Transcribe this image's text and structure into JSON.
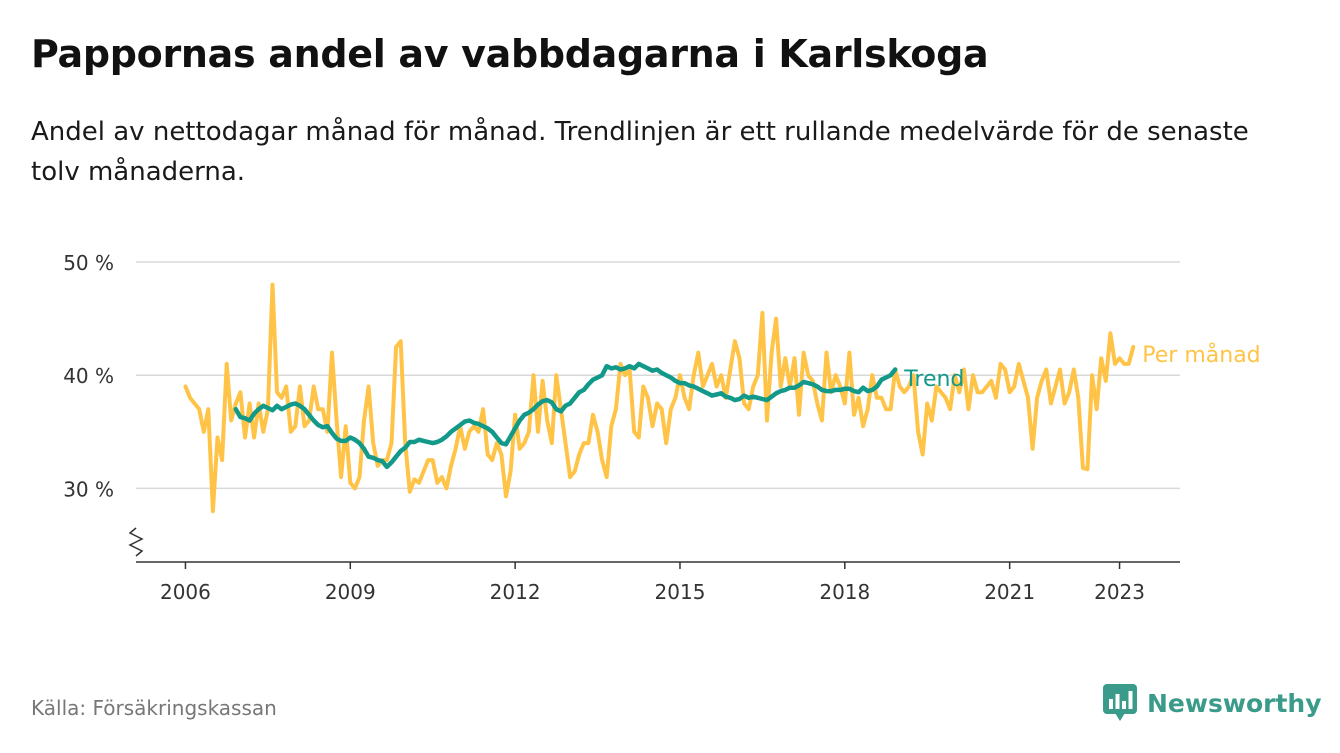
{
  "header": {
    "title": "Pappornas andel av vabbdagarna i Karlskoga",
    "subtitle": "Andel av nettodagar månad för månad. Trendlinjen är ett rullande medelvärde för de senaste tolv månaderna."
  },
  "footer": {
    "source": "Källa: Försäkringskassan",
    "brand": "Newsworthy",
    "brand_icon": "bar-chart-bubble-icon"
  },
  "colors": {
    "monthly": "#FFC447",
    "trend": "#12998A",
    "grid": "#d9d9d9",
    "axis": "#333333",
    "brand": "#3a9b8a"
  },
  "chart_data": {
    "type": "line",
    "title": "Pappornas andel av vabbdagarna i Karlskoga",
    "xlabel": "",
    "ylabel": "",
    "x_ticks": [
      {
        "label": "2006",
        "value": 2006
      },
      {
        "label": "2009",
        "value": 2009
      },
      {
        "label": "2012",
        "value": 2012
      },
      {
        "label": "2015",
        "value": 2015
      },
      {
        "label": "2018",
        "value": 2018
      },
      {
        "label": "2021",
        "value": 2021
      },
      {
        "label": "2023",
        "value": 2023
      }
    ],
    "y_ticks": [
      {
        "label": "30 %",
        "value": 30
      },
      {
        "label": "40 %",
        "value": 40
      },
      {
        "label": "50 %",
        "value": 50
      }
    ],
    "xlim": [
      2005.1,
      2024.1
    ],
    "ylim": [
      23.5,
      50
    ],
    "y_axis_break": true,
    "grid": true,
    "legend_placement": "inline-right",
    "series": [
      {
        "name": "Per månad",
        "start": "2006-01",
        "values": [
          39,
          38,
          37.5,
          37,
          35,
          37,
          28,
          34.5,
          32.5,
          41,
          36,
          37.5,
          38.5,
          34.5,
          37.5,
          34.5,
          37.5,
          35,
          37,
          48,
          38.5,
          38,
          39,
          35,
          35.5,
          39,
          35.5,
          36,
          39,
          37,
          37,
          35,
          42,
          36,
          31,
          35.5,
          30.5,
          30,
          31,
          36,
          39,
          34,
          32,
          32.5,
          32.5,
          34,
          42.5,
          43,
          34,
          29.7,
          30.8,
          30.5,
          31.5,
          32.5,
          32.5,
          30.5,
          31,
          30,
          32,
          33.5,
          35.5,
          33.5,
          35,
          35.5,
          35,
          37,
          33,
          32.5,
          34,
          33,
          29.3,
          31.5,
          36.5,
          33.5,
          34,
          35,
          40,
          35,
          39.5,
          36,
          34,
          40,
          37,
          34,
          31,
          31.5,
          33,
          34,
          34,
          36.5,
          35,
          32.5,
          31,
          35.5,
          37,
          41,
          40,
          40.5,
          35,
          34.5,
          39,
          38,
          35.5,
          37.5,
          37,
          34,
          37,
          38,
          40,
          38,
          37,
          40,
          42,
          39,
          40,
          41,
          39,
          40,
          38,
          40.5,
          43,
          41.5,
          37.5,
          37,
          39,
          40,
          45.5,
          36,
          42,
          45,
          39,
          41.5,
          39,
          41.5,
          36.5,
          42,
          40,
          39.5,
          37.5,
          36,
          42,
          38.5,
          40,
          39,
          37.5,
          42,
          36.5,
          38,
          35.5,
          37,
          40,
          38,
          38,
          37,
          37,
          40.5,
          39,
          38.5,
          39,
          40,
          35,
          33,
          37.5,
          36,
          39,
          38.5,
          38,
          37,
          40,
          38.5,
          40.5,
          37,
          40,
          38.5,
          38.5,
          39,
          39.5,
          38,
          41,
          40.5,
          38.5,
          39,
          41,
          39.5,
          38,
          33.5,
          38,
          39.5,
          40.5,
          37.5,
          39,
          40.5,
          37.5,
          38.5,
          40.5,
          38,
          31.8,
          31.7,
          40,
          37,
          41.5,
          39.5,
          43.7,
          41,
          41.5,
          41,
          41,
          42.5
        ]
      },
      {
        "name": "Trend",
        "start": "2006-12",
        "values": [
          37,
          36.3,
          36.2,
          36,
          36.6,
          37,
          37.3,
          37.1,
          36.9,
          37.3,
          37,
          37.2,
          37.4,
          37.5,
          37.3,
          37,
          36.5,
          36,
          35.6,
          35.4,
          35.5,
          34.9,
          34.4,
          34.2,
          34.2,
          34.5,
          34.3,
          34,
          33.5,
          32.8,
          32.7,
          32.5,
          32.4,
          31.9,
          32.3,
          32.8,
          33.3,
          33.6,
          34.1,
          34.1,
          34.3,
          34.2,
          34.1,
          34,
          34.1,
          34.3,
          34.6,
          35,
          35.3,
          35.6,
          35.9,
          36,
          35.8,
          35.7,
          35.5,
          35.3,
          35,
          34.5,
          34,
          33.9,
          34.6,
          35.3,
          36,
          36.5,
          36.7,
          37,
          37.4,
          37.7,
          37.8,
          37.6,
          37,
          36.8,
          37.3,
          37.5,
          38,
          38.5,
          38.7,
          39.2,
          39.6,
          39.8,
          40,
          40.8,
          40.6,
          40.7,
          40.5,
          40.6,
          40.8,
          40.6,
          41,
          40.8,
          40.6,
          40.4,
          40.5,
          40.2,
          40,
          39.8,
          39.5,
          39.3,
          39.3,
          39.1,
          39,
          38.8,
          38.6,
          38.4,
          38.2,
          38.3,
          38.4,
          38.1,
          38,
          37.8,
          37.9,
          38.2,
          38,
          38.1,
          38,
          37.9,
          37.8,
          38.1,
          38.4,
          38.6,
          38.7,
          38.9,
          38.9,
          39.1,
          39.4,
          39.3,
          39.2,
          39,
          38.7,
          38.6,
          38.6,
          38.7,
          38.7,
          38.8,
          38.8,
          38.6,
          38.5,
          38.9,
          38.6,
          38.7,
          39,
          39.6,
          39.8,
          40,
          40.5
        ]
      }
    ]
  }
}
